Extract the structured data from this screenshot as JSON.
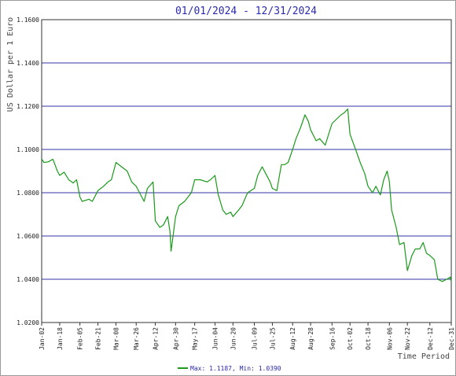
{
  "chart_data": {
    "type": "line",
    "title": "01/01/2024 - 12/31/2024",
    "ylabel": "US Dollar per 1 Euro",
    "xlabel": "Time Period",
    "ylim": [
      1.02,
      1.16
    ],
    "yticks": [
      1.02,
      1.04,
      1.06,
      1.08,
      1.1,
      1.12,
      1.14,
      1.16
    ],
    "ytick_labels": [
      "1.0200",
      "1.0400",
      "1.0600",
      "1.0800",
      "1.1000",
      "1.1200",
      "1.1400",
      "1.1600"
    ],
    "x_start": "2024-01-02",
    "x_end": "2024-12-31",
    "xticks": [
      "2024-01-02",
      "2024-01-18",
      "2024-02-05",
      "2024-02-21",
      "2024-03-08",
      "2024-03-26",
      "2024-04-12",
      "2024-04-30",
      "2024-05-17",
      "2024-06-04",
      "2024-06-20",
      "2024-07-09",
      "2024-07-25",
      "2024-08-12",
      "2024-08-28",
      "2024-09-16",
      "2024-10-02",
      "2024-10-18",
      "2024-11-06",
      "2024-11-22",
      "2024-12-12",
      "2024-12-31"
    ],
    "xtick_labels": [
      "Jan-02",
      "Jan-18",
      "Feb-05",
      "Feb-21",
      "Mar-08",
      "Mar-26",
      "Apr-12",
      "Apr-30",
      "May-17",
      "Jun-04",
      "Jun-20",
      "Jul-09",
      "Jul-25",
      "Aug-12",
      "Aug-28",
      "Sep-16",
      "Oct-02",
      "Oct-18",
      "Nov-06",
      "Nov-22",
      "Dec-12",
      "Dec-31"
    ],
    "grid": "horizontal",
    "legend_position": "bottom-center",
    "legend_text": "Max: 1.1187, Min: 1.0390",
    "series": [
      {
        "color": "#1a9a1a",
        "x": [
          "2024-01-02",
          "2024-01-04",
          "2024-01-08",
          "2024-01-12",
          "2024-01-16",
          "2024-01-18",
          "2024-01-22",
          "2024-01-26",
          "2024-01-30",
          "2024-02-02",
          "2024-02-05",
          "2024-02-07",
          "2024-02-13",
          "2024-02-16",
          "2024-02-21",
          "2024-02-26",
          "2024-03-01",
          "2024-03-04",
          "2024-03-08",
          "2024-03-13",
          "2024-03-18",
          "2024-03-22",
          "2024-03-26",
          "2024-03-29",
          "2024-04-02",
          "2024-04-05",
          "2024-04-10",
          "2024-04-12",
          "2024-04-16",
          "2024-04-19",
          "2024-04-23",
          "2024-04-25",
          "2024-04-26",
          "2024-04-30",
          "2024-05-03",
          "2024-05-08",
          "2024-05-14",
          "2024-05-17",
          "2024-05-22",
          "2024-05-28",
          "2024-05-31",
          "2024-06-04",
          "2024-06-07",
          "2024-06-11",
          "2024-06-14",
          "2024-06-18",
          "2024-06-20",
          "2024-06-25",
          "2024-06-28",
          "2024-07-03",
          "2024-07-09",
          "2024-07-12",
          "2024-07-16",
          "2024-07-19",
          "2024-07-23",
          "2024-07-25",
          "2024-07-29",
          "2024-08-02",
          "2024-08-05",
          "2024-08-08",
          "2024-08-12",
          "2024-08-15",
          "2024-08-19",
          "2024-08-23",
          "2024-08-26",
          "2024-08-28",
          "2024-09-02",
          "2024-09-05",
          "2024-09-10",
          "2024-09-13",
          "2024-09-16",
          "2024-09-20",
          "2024-09-24",
          "2024-09-27",
          "2024-09-30",
          "2024-10-02",
          "2024-10-07",
          "2024-10-11",
          "2024-10-15",
          "2024-10-18",
          "2024-10-22",
          "2024-10-25",
          "2024-10-29",
          "2024-11-01",
          "2024-11-04",
          "2024-11-06",
          "2024-11-08",
          "2024-11-12",
          "2024-11-15",
          "2024-11-19",
          "2024-11-22",
          "2024-11-26",
          "2024-11-29",
          "2024-12-03",
          "2024-12-06",
          "2024-12-09",
          "2024-12-12",
          "2024-12-16",
          "2024-12-19",
          "2024-12-23",
          "2024-12-27",
          "2024-12-30",
          "2024-12-31"
        ],
        "y": [
          1.0956,
          1.094,
          1.0943,
          1.0955,
          1.09,
          1.088,
          1.0895,
          1.086,
          1.0845,
          1.086,
          1.078,
          1.076,
          1.077,
          1.076,
          1.081,
          1.083,
          1.085,
          1.086,
          1.094,
          1.092,
          1.09,
          1.085,
          1.083,
          1.08,
          1.076,
          1.082,
          1.085,
          1.067,
          1.064,
          1.065,
          1.069,
          1.062,
          1.053,
          1.069,
          1.074,
          1.076,
          1.08,
          1.086,
          1.086,
          1.085,
          1.086,
          1.088,
          1.079,
          1.072,
          1.07,
          1.071,
          1.069,
          1.072,
          1.074,
          1.08,
          1.082,
          1.088,
          1.092,
          1.089,
          1.085,
          1.082,
          1.081,
          1.093,
          1.093,
          1.094,
          1.1,
          1.105,
          1.11,
          1.116,
          1.113,
          1.109,
          1.104,
          1.105,
          1.102,
          1.107,
          1.112,
          1.114,
          1.116,
          1.117,
          1.1187,
          1.107,
          1.1,
          1.094,
          1.089,
          1.083,
          1.08,
          1.083,
          1.079,
          1.086,
          1.09,
          1.085,
          1.072,
          1.064,
          1.056,
          1.057,
          1.044,
          1.051,
          1.054,
          1.054,
          1.057,
          1.052,
          1.051,
          1.049,
          1.04,
          1.039,
          1.04,
          1.041,
          1.039
        ]
      }
    ]
  }
}
